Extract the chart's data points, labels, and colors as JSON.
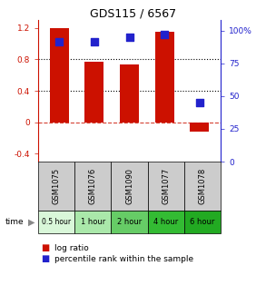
{
  "title": "GDS115 / 6567",
  "samples": [
    "GSM1075",
    "GSM1076",
    "GSM1090",
    "GSM1077",
    "GSM1078"
  ],
  "time_labels": [
    "0.5 hour",
    "1 hour",
    "2 hour",
    "4 hour",
    "6 hour"
  ],
  "time_colors": [
    "#d9f7d9",
    "#aae8aa",
    "#66cc66",
    "#33bb33",
    "#22aa22"
  ],
  "log_ratios": [
    1.2,
    0.77,
    0.74,
    1.15,
    -0.12
  ],
  "percentile_ranks": [
    92,
    92,
    95,
    97,
    45
  ],
  "bar_color": "#cc1100",
  "dot_color": "#2222cc",
  "ylim_left": [
    -0.5,
    1.3
  ],
  "ylim_right": [
    0,
    108.333
  ],
  "yticks_left": [
    -0.4,
    0.0,
    0.4,
    0.8,
    1.2
  ],
  "yticks_right": [
    0,
    25,
    50,
    75,
    100
  ],
  "ytick_labels_left": [
    "-0.4",
    "0",
    "0.4",
    "0.8",
    "1.2"
  ],
  "ytick_labels_right": [
    "0",
    "25",
    "50",
    "75",
    "100%"
  ],
  "hlines": [
    0.4,
    0.8
  ],
  "zero_line_y": 0.0,
  "bar_width": 0.55,
  "dot_size": 40,
  "legend_log_label": "log ratio",
  "legend_pct_label": "percentile rank within the sample",
  "sample_bg_color": "#cccccc",
  "figsize": [
    2.93,
    3.36
  ],
  "dpi": 100
}
